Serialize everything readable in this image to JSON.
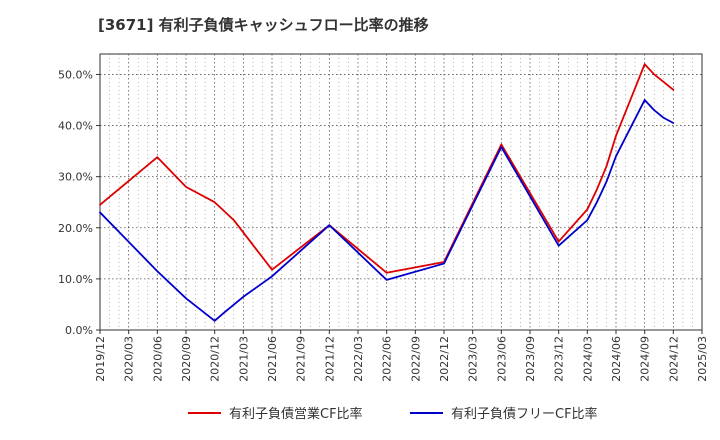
{
  "chart_data": {
    "type": "line",
    "title": "[3671]  有利子負債キャッシュフロー比率の推移",
    "xlabel": "",
    "ylabel": "",
    "x": [
      "2019/12",
      "2020/03",
      "2020/06",
      "2020/09",
      "2020/12",
      "2021/03",
      "2021/06",
      "2021/09",
      "2021/12",
      "2022/03",
      "2022/06",
      "2022/09",
      "2022/12",
      "2023/03",
      "2023/06",
      "2023/09",
      "2023/12",
      "2024/03",
      "2024/06",
      "2024/09",
      "2024/12",
      "2025/03"
    ],
    "ylim": [
      0,
      54
    ],
    "yticks": [
      "0.0%",
      "10.0%",
      "20.0%",
      "30.0%",
      "40.0%",
      "50.0%"
    ],
    "ytick_values": [
      0,
      10,
      20,
      30,
      40,
      50
    ],
    "grid": true,
    "legend": "bottom",
    "series": [
      {
        "name": "有利子負債営業CF比率",
        "color": "#dd0000",
        "points": [
          [
            "2019/12",
            24.5
          ],
          [
            "2020/06",
            33.8
          ],
          [
            "2020/09",
            28.0
          ],
          [
            "2020/12",
            25.0
          ],
          [
            "2021/02",
            21.5
          ],
          [
            "2021/06",
            11.8
          ],
          [
            "2021/12",
            20.5
          ],
          [
            "2022/06",
            11.2
          ],
          [
            "2022/12",
            13.3
          ],
          [
            "2023/06",
            36.3
          ],
          [
            "2023/12",
            17.3
          ],
          [
            "2024/03",
            23.6
          ],
          [
            "2024/04",
            27.5
          ],
          [
            "2024/05",
            32.0
          ],
          [
            "2024/06",
            38.0
          ],
          [
            "2024/09",
            52.0
          ],
          [
            "2024/10",
            50.0
          ],
          [
            "2024/11",
            48.5
          ],
          [
            "2024/12",
            47.0
          ]
        ]
      },
      {
        "name": "有利子負債フリーCF比率",
        "color": "#0000cc",
        "points": [
          [
            "2019/12",
            23.0
          ],
          [
            "2020/06",
            11.5
          ],
          [
            "2020/09",
            6.2
          ],
          [
            "2020/12",
            1.8
          ],
          [
            "2021/01",
            3.4
          ],
          [
            "2021/03",
            6.5
          ],
          [
            "2021/06",
            10.5
          ],
          [
            "2021/12",
            20.5
          ],
          [
            "2022/06",
            9.8
          ],
          [
            "2022/12",
            13.0
          ],
          [
            "2023/06",
            35.8
          ],
          [
            "2023/12",
            16.5
          ],
          [
            "2024/03",
            21.5
          ],
          [
            "2024/04",
            25.0
          ],
          [
            "2024/05",
            29.0
          ],
          [
            "2024/06",
            34.0
          ],
          [
            "2024/09",
            45.0
          ],
          [
            "2024/10",
            43.0
          ],
          [
            "2024/11",
            41.5
          ],
          [
            "2024/12",
            40.5
          ]
        ]
      }
    ]
  }
}
